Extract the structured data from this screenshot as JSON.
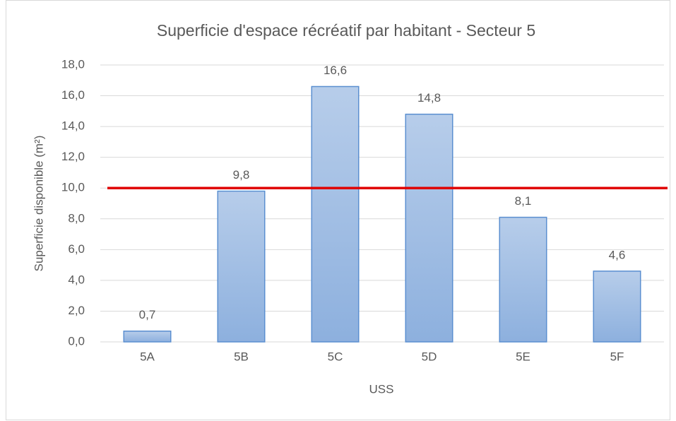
{
  "chart_data": {
    "type": "bar",
    "title": "Superficie d'espace récréatif par habitant - Secteur 5",
    "x_label": "USS",
    "y_label": "Superficie disponible (m²)",
    "categories": [
      "5A",
      "5B",
      "5C",
      "5D",
      "5E",
      "5F"
    ],
    "values": [
      0.7,
      9.8,
      16.6,
      14.8,
      8.1,
      4.6
    ],
    "value_labels": [
      "0,7",
      "9,8",
      "16,6",
      "14,8",
      "8,1",
      "4,6"
    ],
    "color": "#9dbde6",
    "reference_line": {
      "value": 10,
      "color": "#e00000"
    },
    "ylim": [
      0,
      18
    ],
    "yticks": [
      {
        "value": 0,
        "label": "0,0"
      },
      {
        "value": 2,
        "label": "2,0"
      },
      {
        "value": 4,
        "label": "4,0"
      },
      {
        "value": 6,
        "label": "6,0"
      },
      {
        "value": 8,
        "label": "8,0"
      },
      {
        "value": 10,
        "label": "10,0"
      },
      {
        "value": 12,
        "label": "12,0"
      },
      {
        "value": 14,
        "label": "14,0"
      },
      {
        "value": 16,
        "label": "16,0"
      },
      {
        "value": 18,
        "label": "18,0"
      }
    ],
    "grid": true
  }
}
